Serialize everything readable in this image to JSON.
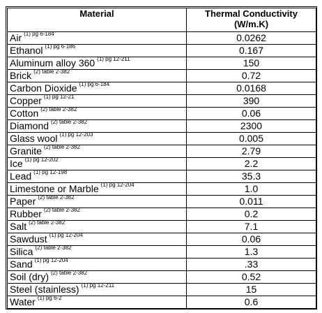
{
  "table": {
    "headers": {
      "material": "Material",
      "conductivity_line1": "Thermal Conductivity",
      "conductivity_line2": "(W/m.K)"
    },
    "rows": [
      {
        "material": "Air",
        "ref": "(1) pg 6-184",
        "value": "0.0262"
      },
      {
        "material": "Ethanol",
        "ref": "(1) pg 6-186",
        "value": "0.167"
      },
      {
        "material": "Aluminum alloy 360",
        "ref": "(1) pg 12-211",
        "value": "150"
      },
      {
        "material": "Brick",
        "ref": "(2) table 2-382",
        "value": "0.72"
      },
      {
        "material": "Carbon Dioxide",
        "ref": "(1) pg 6-184",
        "value": "0.0168"
      },
      {
        "material": "Copper",
        "ref": "(1) pg 12-21",
        "value": "390"
      },
      {
        "material": "Cotton",
        "ref": "(2) table 2-382",
        "value": "0.06"
      },
      {
        "material": "Diamond",
        "ref": "(2) table 2-382",
        "value": "2300"
      },
      {
        "material": "Glass wool",
        "ref": "(1) pg 12-203",
        "value": "0.005"
      },
      {
        "material": "Granite",
        "ref": "(2) table 2-382",
        "value": "2.79"
      },
      {
        "material": "Ice",
        "ref": "(1) pg 12-202",
        "value": "2.2"
      },
      {
        "material": "Lead",
        "ref": "(1) pg 12-198",
        "value": "35.3"
      },
      {
        "material": "Limestone or Marble",
        "ref": "(1) pg 12-204",
        "value": "1.0"
      },
      {
        "material": "Paper",
        "ref": "(2) table 2-382",
        "value": "0.011"
      },
      {
        "material": "Rubber",
        "ref": "(2) table 2-382",
        "value": "0.2"
      },
      {
        "material": "Salt",
        "ref": "(2) table 2-382",
        "value": "7.1"
      },
      {
        "material": "Sawdust",
        "ref": "(1) pg 12-204",
        "value": "0.06"
      },
      {
        "material": "Silica",
        "ref": "(2) table 2-382",
        "value": "1.3"
      },
      {
        "material": "Sand",
        "ref": "(1) pg 12-204",
        "value": ".33"
      },
      {
        "material": "Soil (dry)",
        "ref": "(2) table 2-382",
        "value": "0.52"
      },
      {
        "material": "Steel (stainless)",
        "ref": "(1) pg 12-211",
        "value": "15"
      },
      {
        "material": "Water",
        "ref": "(1) pg 6-2",
        "value": "0.6"
      }
    ]
  }
}
